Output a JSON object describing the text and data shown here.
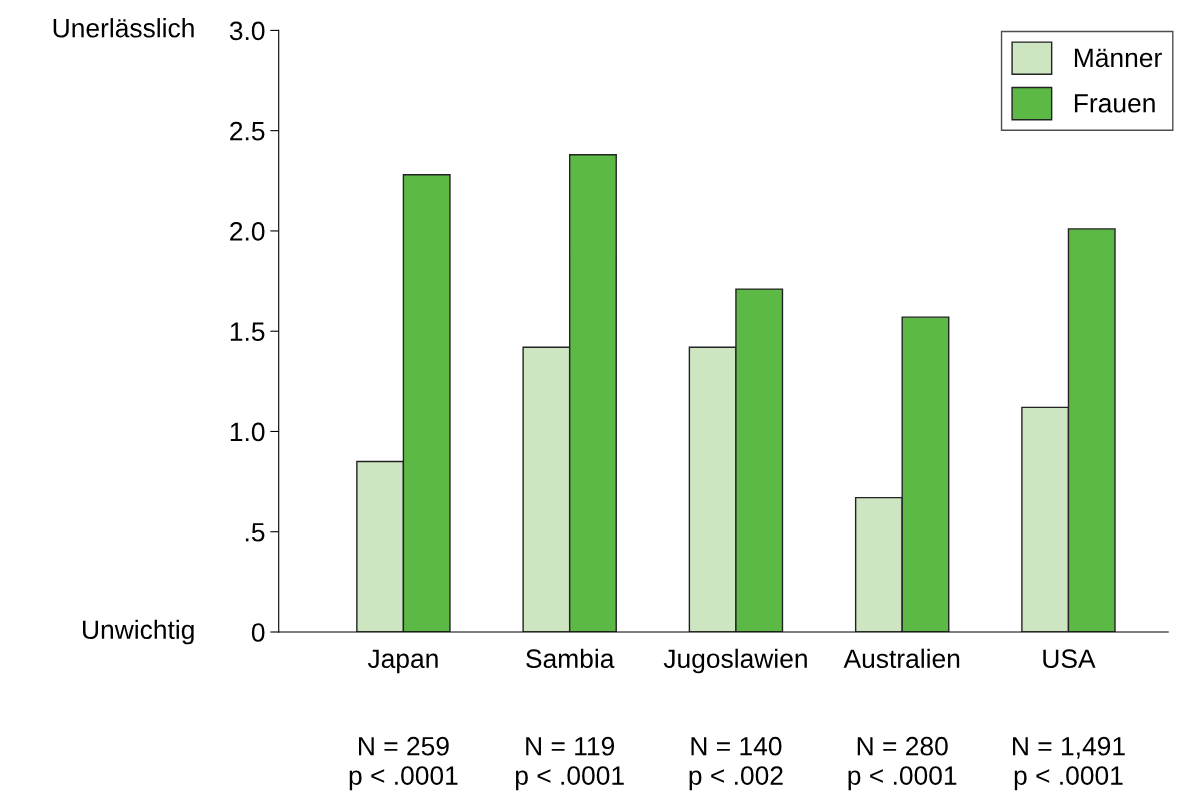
{
  "chart_data": {
    "type": "bar",
    "categories": [
      "Japan",
      "Sambia",
      "Jugoslawien",
      "Australien",
      "USA"
    ],
    "series": [
      {
        "name": "Männer",
        "color": "#cde5c1",
        "values": [
          0.85,
          1.42,
          1.42,
          0.67,
          1.12
        ]
      },
      {
        "name": "Frauen",
        "color": "#5db946",
        "values": [
          2.28,
          2.38,
          1.71,
          1.57,
          2.01
        ]
      }
    ],
    "ylim": [
      0,
      3.0
    ],
    "yticks": [
      {
        "value": 0,
        "label": "0"
      },
      {
        "value": 0.5,
        "label": ".5"
      },
      {
        "value": 1.0,
        "label": "1.0"
      },
      {
        "value": 1.5,
        "label": "1.5"
      },
      {
        "value": 2.0,
        "label": "2.0"
      },
      {
        "value": 2.5,
        "label": "2.5"
      },
      {
        "value": 3.0,
        "label": "3.0"
      }
    ],
    "annotations": [
      "Unerlässlich",
      "Unwichtig",
      "N = 259\np < .0001",
      "N = 119\np < .0001",
      "N = 140\np < .002",
      "N = 280\np < .0001",
      "N = 1,491\np < .0001"
    ],
    "grid": false,
    "legend": "top right"
  }
}
